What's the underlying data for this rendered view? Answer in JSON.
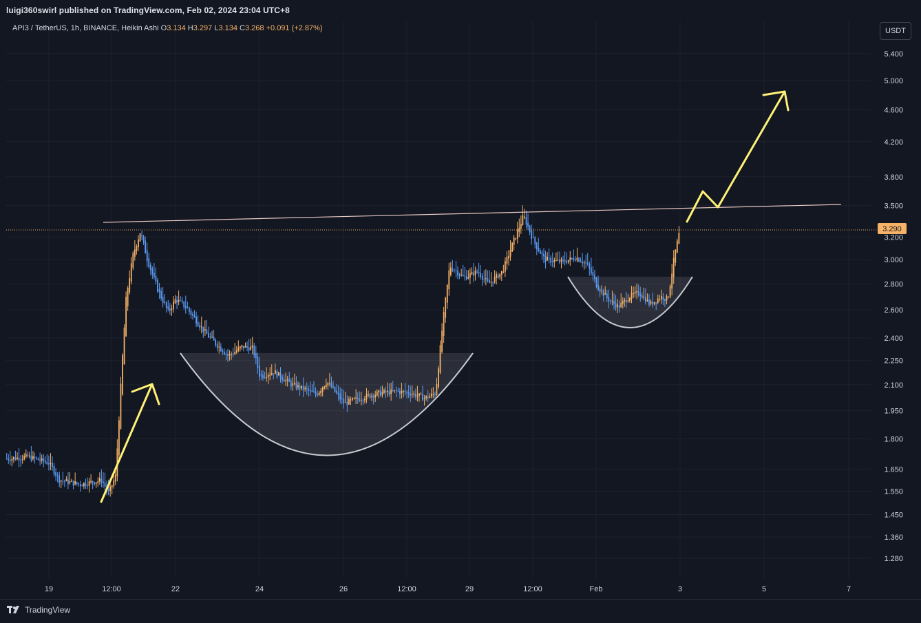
{
  "header": {
    "published": "luigi360swirl published on TradingView.com, Feb 02, 2024 23:04 UTC+8"
  },
  "legend": {
    "symbol": "API3 / TetherUS, 1h, BINANCE, Heikin Ashi",
    "o_label": "O",
    "o_value": "3.134",
    "h_label": "H",
    "h_value": "3.297",
    "l_label": "L",
    "l_value": "3.134",
    "c_label": "C",
    "c_value": "3.268",
    "change": "+0.091 (+2.87%)"
  },
  "currency_button": "USDT",
  "footer": {
    "brand": "TradingView"
  },
  "colors": {
    "background": "#131722",
    "grid": "#1e222d",
    "up": "#f7b267",
    "down": "#5b9cf6",
    "annotation": "#fff176",
    "resistance": "#e8c7c2",
    "cup_fill": "#3a3d47",
    "price_tag": "#f7b267"
  },
  "chart_data": {
    "type": "candlestick",
    "yscale": "log",
    "ylim": [
      1.2,
      5.9
    ],
    "y_ticks": [
      "5.400",
      "5.000",
      "4.600",
      "4.200",
      "3.800",
      "3.500",
      "3.200",
      "3.000",
      "2.800",
      "2.600",
      "2.400",
      "2.250",
      "2.100",
      "1.950",
      "1.800",
      "1.650",
      "1.550",
      "1.450",
      "1.360",
      "1.280"
    ],
    "x_ticks": [
      "19",
      "12:00",
      "22",
      "24",
      "26",
      "12:00",
      "29",
      "12:00",
      "Feb",
      "3",
      "5",
      "7"
    ],
    "last_price": "3.290",
    "price_path": [
      [
        "Jan 18 00:00",
        1.7
      ],
      [
        "Jan 18 12:00",
        1.71
      ],
      [
        "Jan 19 00:00",
        1.68
      ],
      [
        "Jan 19 06:00",
        1.6
      ],
      [
        "Jan 19 18:00",
        1.58
      ],
      [
        "Jan 20 06:00",
        1.6
      ],
      [
        "Jan 20 10:00",
        1.54
      ],
      [
        "Jan 20 14:00",
        1.62
      ],
      [
        "Jan 20 18:00",
        2.3
      ],
      [
        "Jan 20 20:00",
        2.7
      ],
      [
        "Jan 21 00:00",
        3.05
      ],
      [
        "Jan 21 04:00",
        3.25
      ],
      [
        "Jan 21 08:00",
        3.0
      ],
      [
        "Jan 21 14:00",
        2.75
      ],
      [
        "Jan 21 20:00",
        2.58
      ],
      [
        "Jan 22 00:00",
        2.68
      ],
      [
        "Jan 22 06:00",
        2.62
      ],
      [
        "Jan 22 18:00",
        2.42
      ],
      [
        "Jan 23 06:00",
        2.28
      ],
      [
        "Jan 23 14:00",
        2.34
      ],
      [
        "Jan 23 20:00",
        2.33
      ],
      [
        "Jan 24 00:00",
        2.15
      ],
      [
        "Jan 24 08:00",
        2.18
      ],
      [
        "Jan 24 18:00",
        2.1
      ],
      [
        "Jan 25 02:00",
        2.07
      ],
      [
        "Jan 25 08:00",
        2.04
      ],
      [
        "Jan 25 14:00",
        2.12
      ],
      [
        "Jan 25 20:00",
        2.04
      ],
      [
        "Jan 26 00:00",
        1.99
      ],
      [
        "Jan 26 12:00",
        2.03
      ],
      [
        "Jan 26 20:00",
        2.05
      ],
      [
        "Jan 27 06:00",
        2.06
      ],
      [
        "Jan 27 14:00",
        2.05
      ],
      [
        "Jan 27 22:00",
        2.02
      ],
      [
        "Jan 28 04:00",
        2.05
      ],
      [
        "Jan 28 08:00",
        2.5
      ],
      [
        "Jan 28 12:00",
        2.95
      ],
      [
        "Jan 28 20:00",
        2.85
      ],
      [
        "Jan 29 04:00",
        2.9
      ],
      [
        "Jan 29 10:00",
        2.8
      ],
      [
        "Jan 29 18:00",
        2.9
      ],
      [
        "Jan 30 00:00",
        3.15
      ],
      [
        "Jan 30 06:00",
        3.4
      ],
      [
        "Jan 30 12:00",
        3.15
      ],
      [
        "Jan 30 18:00",
        3.0
      ],
      [
        "Jan 31 04:00",
        2.98
      ],
      [
        "Jan 31 12:00",
        3.02
      ],
      [
        "Jan 31 18:00",
        2.96
      ],
      [
        "Feb 01 00:00",
        2.78
      ],
      [
        "Feb 01 06:00",
        2.68
      ],
      [
        "Feb 01 12:00",
        2.62
      ],
      [
        "Feb 01 18:00",
        2.7
      ],
      [
        "Feb 02 00:00",
        2.73
      ],
      [
        "Feb 02 06:00",
        2.64
      ],
      [
        "Feb 02 12:00",
        2.7
      ],
      [
        "Feb 02 16:00",
        2.68
      ],
      [
        "Feb 02 20:00",
        3.05
      ],
      [
        "Feb 02 23:00",
        3.27
      ]
    ],
    "resistance_line": {
      "from": [
        "Jan 20 18:00",
        3.33
      ],
      "to": [
        "Feb 07 00:00",
        3.51
      ]
    }
  }
}
